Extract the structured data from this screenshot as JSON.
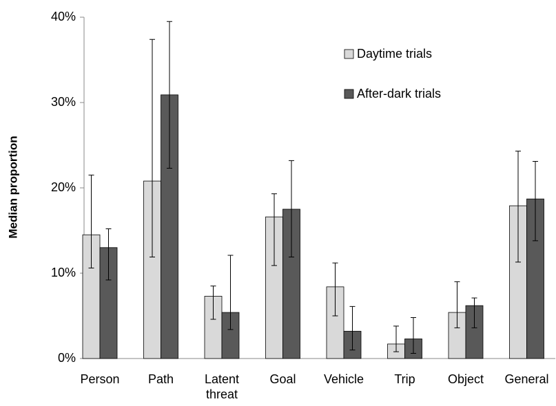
{
  "chart_data": {
    "type": "bar",
    "y_label": "Median proportion",
    "categories": [
      "Person",
      "Path",
      "Latent threat",
      "Goal",
      "Vehicle",
      "Trip",
      "Object",
      "General"
    ],
    "series": [
      {
        "name": "Daytime trials",
        "color": "#d9d9d9",
        "values": [
          14.5,
          20.8,
          7.3,
          16.6,
          8.4,
          1.7,
          5.4,
          17.9
        ],
        "lower": [
          10.6,
          11.9,
          4.6,
          10.9,
          5.0,
          0.8,
          3.6,
          11.3
        ],
        "upper": [
          21.5,
          37.4,
          8.5,
          19.3,
          11.2,
          3.8,
          9.0,
          24.3
        ]
      },
      {
        "name": "After-dark trials",
        "color": "#595959",
        "values": [
          13.0,
          30.9,
          5.4,
          17.5,
          3.2,
          2.3,
          6.2,
          18.7
        ],
        "lower": [
          9.2,
          22.3,
          3.4,
          11.9,
          1.0,
          0.6,
          3.6,
          13.8
        ],
        "upper": [
          15.2,
          39.5,
          12.1,
          23.2,
          6.1,
          4.8,
          7.1,
          23.1
        ]
      }
    ],
    "ylim": [
      0,
      40
    ],
    "yticks": [
      {
        "value": 0,
        "label": "0%"
      },
      {
        "value": 10,
        "label": "10%"
      },
      {
        "value": 20,
        "label": "20%"
      },
      {
        "value": 30,
        "label": "30%"
      },
      {
        "value": 40,
        "label": "40%"
      }
    ],
    "legend": "top-right"
  }
}
